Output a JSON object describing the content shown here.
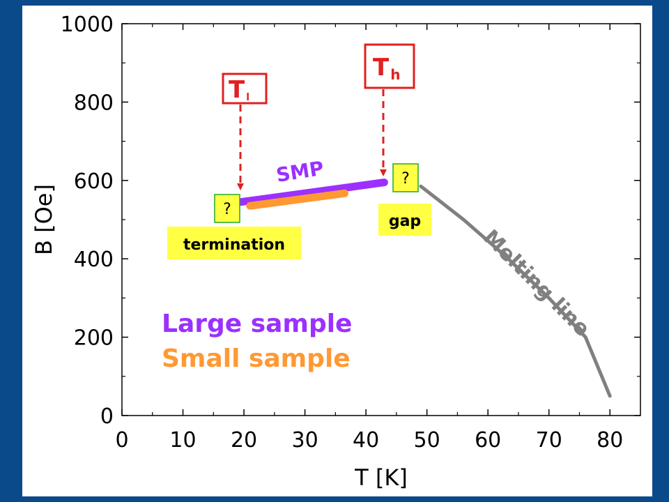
{
  "chart_data": {
    "type": "line",
    "xlabel": "T [K]",
    "ylabel": "B [Oe]",
    "xlim": [
      0,
      85
    ],
    "ylim": [
      0,
      1000
    ],
    "x_ticks": [
      0,
      10,
      20,
      30,
      40,
      50,
      60,
      70,
      80
    ],
    "y_ticks": [
      0,
      200,
      400,
      600,
      800,
      1000
    ],
    "grid": false,
    "series": [
      {
        "label_key": "large",
        "color": "#9b30ff",
        "points": [
          [
            19.5,
            545
          ],
          [
            43,
            595
          ]
        ]
      },
      {
        "label_key": "small",
        "color": "#ff9933",
        "points": [
          [
            21,
            535
          ],
          [
            36.5,
            567
          ]
        ]
      },
      {
        "label_key": "melting",
        "color": "#808080",
        "points": [
          [
            49,
            585
          ],
          [
            56,
            500
          ],
          [
            63,
            405
          ],
          [
            70,
            300
          ],
          [
            76,
            200
          ],
          [
            80,
            50
          ]
        ]
      }
    ],
    "annotations": {
      "smp": "SMP",
      "melting": "Melting line",
      "tl_main": "T",
      "tl_sub": "l",
      "th_main": "T",
      "th_sub": "h",
      "q_left": "?",
      "q_right": "?",
      "termination": "termination",
      "gap": "gap"
    },
    "legend": {
      "position": "bottom-left",
      "items": [
        {
          "label": "Large sample",
          "color": "#9b30ff"
        },
        {
          "label": "Small sample",
          "color": "#ff9933"
        }
      ]
    },
    "colors": {
      "arrow": "#e02020",
      "box_border": "#e02020",
      "label_box": "#ffff44",
      "question_box": "#ffff44",
      "question_border": "#22aa22",
      "frame": "#0b4a8a"
    }
  }
}
